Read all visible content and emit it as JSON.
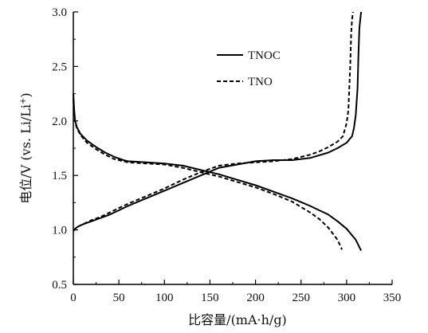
{
  "chart_data": {
    "type": "line",
    "xlabel": "比容量/(mA·h/g)",
    "ylabel_main": "电位/V (vs. Li/Li",
    "ylabel_sup": "+",
    "ylabel_tail": ")",
    "xlim": [
      0,
      350
    ],
    "ylim": [
      0.5,
      3.0
    ],
    "xticks": [
      0,
      50,
      100,
      150,
      200,
      250,
      300,
      350
    ],
    "yticks": [
      0.5,
      1.0,
      1.5,
      2.0,
      2.5,
      3.0
    ],
    "grid": false,
    "legend_position": "top-right",
    "series": [
      {
        "name": "TNOC",
        "style": "solid",
        "color": "#000000",
        "segments": [
          {
            "x": [
              0,
              2,
              5,
              10,
              20,
              30,
              40,
              50,
              60,
              80,
              100,
              120,
              140,
              160,
              180,
              200,
              220,
              240,
              260,
              280,
              290,
              300,
              306,
              308,
              310,
              312,
              313,
              314,
              315,
              316
            ],
            "y": [
              0.99,
              1.01,
              1.03,
              1.05,
              1.08,
              1.11,
              1.14,
              1.18,
              1.22,
              1.29,
              1.36,
              1.43,
              1.5,
              1.57,
              1.6,
              1.63,
              1.64,
              1.64,
              1.66,
              1.71,
              1.75,
              1.8,
              1.86,
              1.93,
              2.05,
              2.3,
              2.6,
              2.85,
              2.93,
              3.0
            ]
          },
          {
            "x": [
              0,
              1,
              2,
              4,
              8,
              15,
              25,
              35,
              45,
              55,
              60,
              80,
              100,
              120,
              140,
              160,
              180,
              200,
              220,
              240,
              260,
              270,
              280,
              290,
              300,
              310,
              316
            ],
            "y": [
              2.25,
              2.1,
              2.0,
              1.94,
              1.88,
              1.82,
              1.76,
              1.71,
              1.67,
              1.64,
              1.63,
              1.62,
              1.61,
              1.59,
              1.55,
              1.51,
              1.46,
              1.41,
              1.35,
              1.29,
              1.22,
              1.18,
              1.14,
              1.08,
              1.01,
              0.91,
              0.81
            ]
          }
        ]
      },
      {
        "name": "TNO",
        "style": "dashed",
        "color": "#000000",
        "segments": [
          {
            "x": [
              0,
              2,
              5,
              10,
              20,
              30,
              40,
              50,
              60,
              80,
              100,
              120,
              140,
              160,
              180,
              200,
              220,
              240,
              260,
              270,
              280,
              290,
              296,
              300,
              302,
              304,
              305,
              306,
              307
            ],
            "y": [
              0.99,
              1.01,
              1.03,
              1.05,
              1.09,
              1.12,
              1.16,
              1.2,
              1.24,
              1.31,
              1.38,
              1.46,
              1.53,
              1.59,
              1.61,
              1.62,
              1.63,
              1.65,
              1.69,
              1.72,
              1.76,
              1.81,
              1.86,
              1.98,
              2.1,
              2.5,
              2.8,
              2.93,
              3.0
            ]
          },
          {
            "x": [
              0,
              1,
              2,
              4,
              8,
              15,
              25,
              35,
              45,
              55,
              60,
              80,
              100,
              120,
              140,
              160,
              180,
              200,
              220,
              240,
              260,
              270,
              280,
              290,
              295
            ],
            "y": [
              2.2,
              2.07,
              1.99,
              1.93,
              1.87,
              1.8,
              1.74,
              1.69,
              1.65,
              1.63,
              1.62,
              1.61,
              1.6,
              1.57,
              1.53,
              1.49,
              1.44,
              1.39,
              1.33,
              1.26,
              1.16,
              1.1,
              1.02,
              0.91,
              0.82
            ]
          }
        ]
      }
    ]
  }
}
